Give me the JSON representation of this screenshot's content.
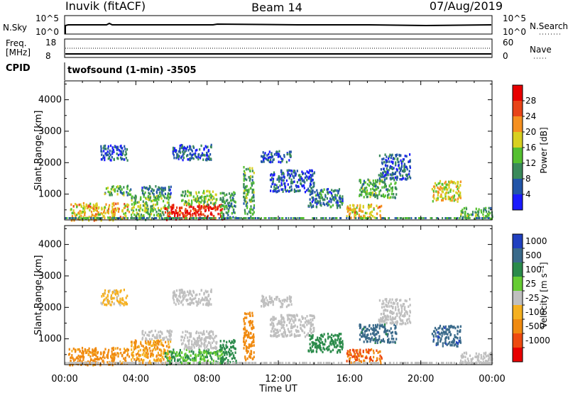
{
  "header": {
    "station": "Inuvik (fitACF)",
    "beam": "Beam 14",
    "date": "07/Aug/2019"
  },
  "top_panels": {
    "nsky_label": "N.Sky",
    "nsearch_label": "N.Search",
    "nsky_ticks": [
      "10^5",
      "10^0"
    ],
    "nsearch_ticks": [
      "10^5",
      "10^0"
    ],
    "freq_label_1": "Freq.",
    "freq_label_2": "[MHz]",
    "freq_ticks": [
      "18",
      "8"
    ],
    "nave_label": "Nave",
    "nave_ticks": [
      "60",
      "0"
    ],
    "cpid_label": "CPID",
    "cpid_value": "twofsound (1-min) -3505"
  },
  "chart_data": [
    {
      "type": "heatmap",
      "title": "",
      "ylabel": "Slant Range [km]",
      "xlabel": "Time UT",
      "x_ticks": [
        "00:00",
        "04:00",
        "08:00",
        "12:00",
        "16:00",
        "20:00",
        "00:00"
      ],
      "y_ticks": [
        "1000",
        "2000",
        "3000",
        "4000"
      ],
      "ylim": [
        180,
        4600
      ],
      "xlim_hours": [
        0,
        24
      ],
      "colorbar_label": "Power [dB]",
      "colorbar_ticks": [
        "4",
        "8",
        "12",
        "16",
        "20",
        "24",
        "28"
      ],
      "colors": [
        "#1a1aff",
        "#2255a8",
        "#3a8a5a",
        "#55c030",
        "#d8d020",
        "#f59020",
        "#e84418",
        "#e80000"
      ],
      "regions": [
        {
          "t": [
            0.3,
            3.6
          ],
          "r": [
            200,
            750
          ],
          "v": 20
        },
        {
          "t": [
            2.2,
            3.7
          ],
          "r": [
            1000,
            1300
          ],
          "v": 12
        },
        {
          "t": [
            2.0,
            3.5
          ],
          "r": [
            2100,
            2600
          ],
          "v": 6
        },
        {
          "t": [
            3.7,
            5.9
          ],
          "r": [
            220,
            1000
          ],
          "v": 14
        },
        {
          "t": [
            4.3,
            6.0
          ],
          "r": [
            1000,
            1300
          ],
          "v": 8
        },
        {
          "t": [
            5.6,
            8.9
          ],
          "r": [
            220,
            700
          ],
          "v": 28
        },
        {
          "t": [
            6.5,
            8.5
          ],
          "r": [
            700,
            1150
          ],
          "v": 14
        },
        {
          "t": [
            6.0,
            8.2
          ],
          "r": [
            2100,
            2600
          ],
          "v": 6
        },
        {
          "t": [
            8.7,
            9.6
          ],
          "r": [
            250,
            1100
          ],
          "v": 10
        },
        {
          "t": [
            10.0,
            10.6
          ],
          "r": [
            300,
            1900
          ],
          "v": 12
        },
        {
          "t": [
            11.0,
            12.7
          ],
          "r": [
            2050,
            2400
          ],
          "v": 6
        },
        {
          "t": [
            11.5,
            14.0
          ],
          "r": [
            1100,
            1800
          ],
          "v": 6
        },
        {
          "t": [
            13.6,
            15.6
          ],
          "r": [
            600,
            1200
          ],
          "v": 8
        },
        {
          "t": [
            15.8,
            17.8
          ],
          "r": [
            250,
            700
          ],
          "v": 20
        },
        {
          "t": [
            16.5,
            18.6
          ],
          "r": [
            900,
            1500
          ],
          "v": 12
        },
        {
          "t": [
            17.6,
            19.4
          ],
          "r": [
            1500,
            2300
          ],
          "v": 6
        },
        {
          "t": [
            20.6,
            22.2
          ],
          "r": [
            800,
            1450
          ],
          "v": 18
        },
        {
          "t": [
            22.2,
            24.0
          ],
          "r": [
            250,
            600
          ],
          "v": 12
        }
      ]
    },
    {
      "type": "heatmap",
      "title": "",
      "ylabel": "Slant Range [km]",
      "xlabel": "Time UT",
      "x_ticks": [
        "00:00",
        "04:00",
        "08:00",
        "12:00",
        "16:00",
        "20:00",
        "00:00"
      ],
      "y_ticks": [
        "1000",
        "2000",
        "3000",
        "4000"
      ],
      "ylim": [
        180,
        4600
      ],
      "xlim_hours": [
        0,
        24
      ],
      "colorbar_label": "Velocity [m s⁻¹]",
      "colorbar_ticks": [
        "1000",
        "500",
        "100",
        "25",
        "-25",
        "-100",
        "-500",
        "-1000"
      ],
      "colors": [
        "#2040c0",
        "#3a6a8a",
        "#2a8a4a",
        "#66cc33",
        "#bfbfbf",
        "#f5b020",
        "#f08a10",
        "#ee4a10",
        "#e80000"
      ],
      "regions": [
        {
          "t": [
            0.2,
            3.6
          ],
          "r": [
            200,
            750
          ],
          "v": -80
        },
        {
          "t": [
            2.0,
            3.5
          ],
          "r": [
            2100,
            2600
          ],
          "v": -40
        },
        {
          "t": [
            3.7,
            5.9
          ],
          "r": [
            220,
            1000
          ],
          "v": -60
        },
        {
          "t": [
            4.3,
            6.0
          ],
          "r": [
            1000,
            1300
          ],
          "v": 0
        },
        {
          "t": [
            5.6,
            8.9
          ],
          "r": [
            220,
            700
          ],
          "v": 60
        },
        {
          "t": [
            6.5,
            8.5
          ],
          "r": [
            700,
            1300
          ],
          "v": 0
        },
        {
          "t": [
            6.0,
            8.2
          ],
          "r": [
            2100,
            2600
          ],
          "v": 0
        },
        {
          "t": [
            8.7,
            9.6
          ],
          "r": [
            250,
            1000
          ],
          "v": 120
        },
        {
          "t": [
            10.0,
            10.6
          ],
          "r": [
            300,
            1900
          ],
          "v": -200
        },
        {
          "t": [
            11.0,
            12.7
          ],
          "r": [
            2050,
            2400
          ],
          "v": 0
        },
        {
          "t": [
            11.5,
            14.0
          ],
          "r": [
            1100,
            1800
          ],
          "v": 0
        },
        {
          "t": [
            13.6,
            15.6
          ],
          "r": [
            600,
            1200
          ],
          "v": 90
        },
        {
          "t": [
            15.8,
            17.8
          ],
          "r": [
            250,
            700
          ],
          "v": -300
        },
        {
          "t": [
            16.5,
            18.6
          ],
          "r": [
            900,
            1500
          ],
          "v": 400
        },
        {
          "t": [
            17.6,
            19.4
          ],
          "r": [
            1500,
            2300
          ],
          "v": 0
        },
        {
          "t": [
            20.6,
            22.2
          ],
          "r": [
            800,
            1450
          ],
          "v": 600
        },
        {
          "t": [
            22.2,
            24.0
          ],
          "r": [
            250,
            600
          ],
          "v": 0
        }
      ]
    }
  ]
}
